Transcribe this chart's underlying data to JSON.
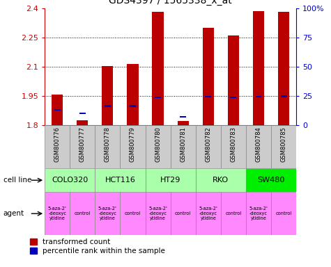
{
  "title": "GDS4397 / 1565338_x_at",
  "samples": [
    "GSM800776",
    "GSM800777",
    "GSM800778",
    "GSM800779",
    "GSM800780",
    "GSM800781",
    "GSM800782",
    "GSM800783",
    "GSM800784",
    "GSM800785"
  ],
  "red_values": [
    1.957,
    1.827,
    2.105,
    2.115,
    2.382,
    1.822,
    2.298,
    2.26,
    2.383,
    2.38
  ],
  "blue_values": [
    1.875,
    1.857,
    1.895,
    1.895,
    1.94,
    1.84,
    1.943,
    1.94,
    1.943,
    1.945
  ],
  "y_min": 1.8,
  "y_max": 2.4,
  "y_ticks": [
    1.8,
    1.95,
    2.1,
    2.25,
    2.4
  ],
  "y_tick_labels": [
    "1.8",
    "1.95",
    "2.1",
    "2.25",
    "2.4"
  ],
  "right_y_ticks": [
    0,
    25,
    50,
    75,
    100
  ],
  "right_y_tick_labels": [
    "0",
    "25",
    "50",
    "75",
    "100%"
  ],
  "cell_lines": [
    {
      "name": "COLO320",
      "start": 0,
      "end": 2,
      "color": "#AAFFAA"
    },
    {
      "name": "HCT116",
      "start": 2,
      "end": 4,
      "color": "#AAFFAA"
    },
    {
      "name": "HT29",
      "start": 4,
      "end": 6,
      "color": "#AAFFAA"
    },
    {
      "name": "RKO",
      "start": 6,
      "end": 8,
      "color": "#AAFFAA"
    },
    {
      "name": "SW480",
      "start": 8,
      "end": 10,
      "color": "#00EE00"
    }
  ],
  "agent_labels": [
    "5-aza-2'\n-deoxyc\nytidine",
    "control",
    "5-aza-2'\n-deoxyc\nytidine",
    "control",
    "5-aza-2'\n-deoxyc\nytidine",
    "control",
    "5-aza-2'\n-deoxyc\nytidine",
    "control",
    "5-aza-2'\n-deoxyc\nytidine",
    "control"
  ],
  "agent_colors": [
    "#FF88FF",
    "#FF88FF",
    "#FF88FF",
    "#FF88FF",
    "#FF88FF",
    "#FF88FF",
    "#FF88FF",
    "#FF88FF",
    "#FF88FF",
    "#FF88FF"
  ],
  "bar_width": 0.45,
  "bar_color": "#BB0000",
  "blue_color": "#0000BB",
  "label_color_red": "#CC0000",
  "label_color_blue": "#0000CC",
  "sample_bg": "#CCCCCC",
  "legend_red_label": "transformed count",
  "legend_blue_label": "percentile rank within the sample"
}
